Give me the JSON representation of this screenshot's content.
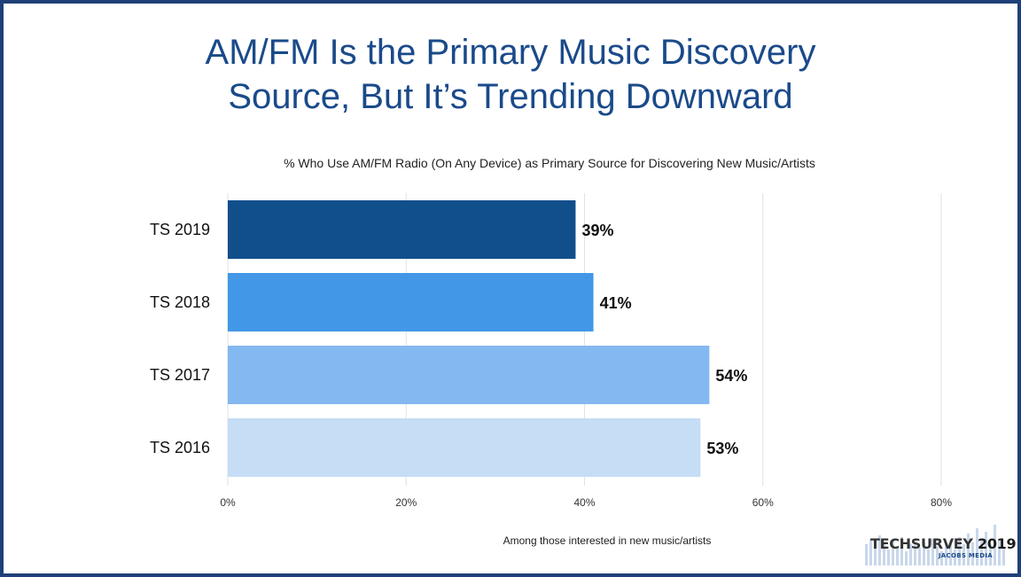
{
  "page": {
    "title_line1": "AM/FM Is the Primary Music Discovery",
    "title_line2": "Source, But It’s Trending Downward",
    "footnote": "Among those interested in new music/artists",
    "border_color": "#1f3f78",
    "title_color": "#1a4a8a"
  },
  "logo": {
    "name": "TECHSURVEY",
    "year": "2019",
    "sub": "JACOBS MEDIA"
  },
  "chart_data": {
    "type": "bar",
    "orientation": "horizontal",
    "title": "% Who Use AM/FM Radio (On Any Device) as Primary Source for Discovering New Music/Artists",
    "categories": [
      "TS 2019",
      "TS 2018",
      "TS 2017",
      "TS 2016"
    ],
    "values": [
      39,
      41,
      54,
      53
    ],
    "value_labels": [
      "39%",
      "41%",
      "54%",
      "53%"
    ],
    "colors": [
      "#114f8b",
      "#4297e7",
      "#84b8f0",
      "#c5ddf5"
    ],
    "xlim": [
      0,
      80
    ],
    "x_ticks": [
      0,
      20,
      40,
      60,
      80
    ],
    "x_tick_labels": [
      "0%",
      "20%",
      "40%",
      "60%",
      "80%"
    ],
    "grid": true,
    "legend": "none"
  }
}
